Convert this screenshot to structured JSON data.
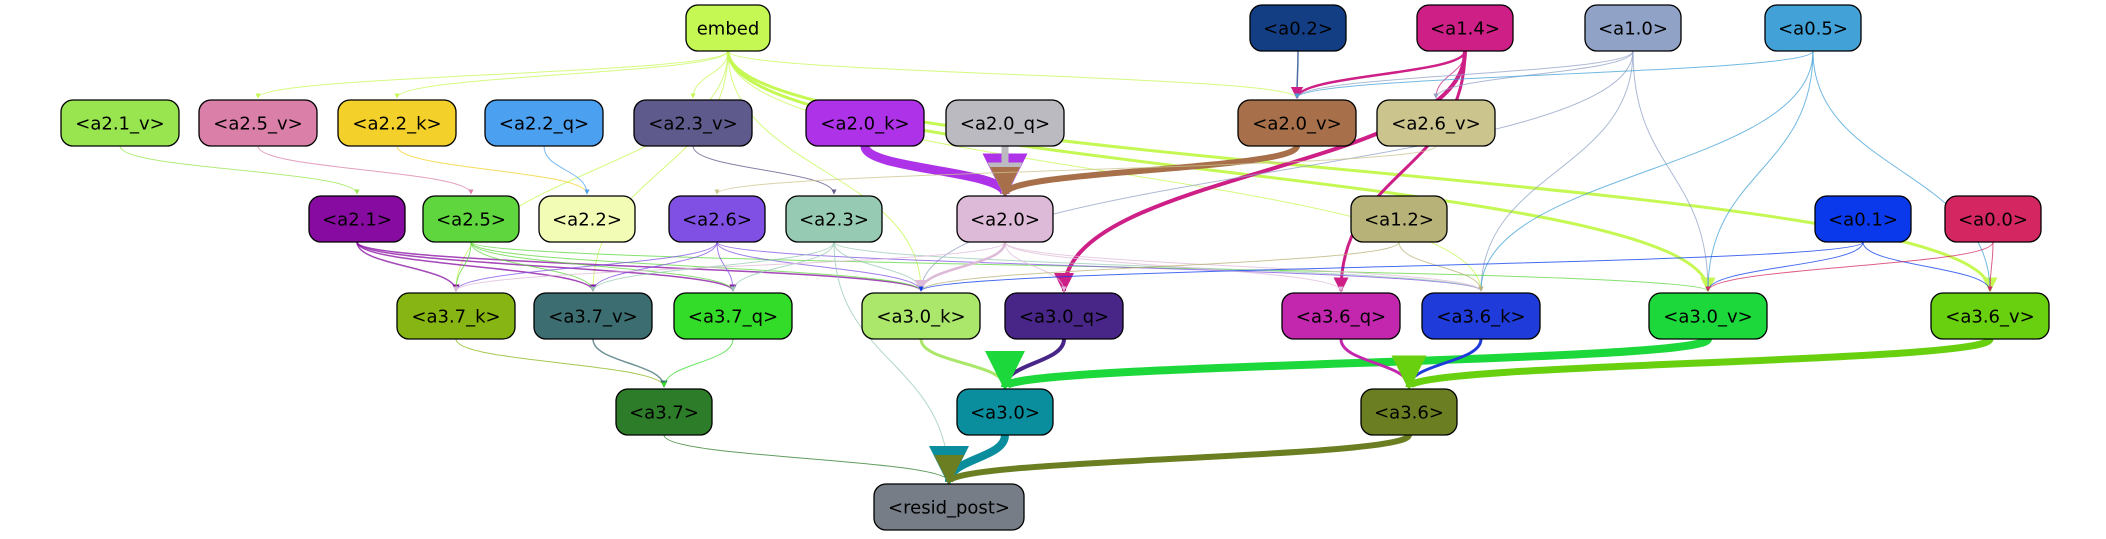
{
  "nodes": [
    {
      "id": "embed",
      "label": "embed",
      "fill": "#c5f853",
      "text": "#000000"
    },
    {
      "id": "a0_2",
      "label": "<a0.2>",
      "fill": "#133e84",
      "text": "#000000"
    },
    {
      "id": "a1_4",
      "label": "<a1.4>",
      "fill": "#cd1f86",
      "text": "#000000"
    },
    {
      "id": "a1_0",
      "label": "<a1.0>",
      "fill": "#90a2c6",
      "text": "#000000"
    },
    {
      "id": "a0_5",
      "label": "<a0.5>",
      "fill": "#42a1d7",
      "text": "#000000"
    },
    {
      "id": "a2_1_v",
      "label": "<a2.1_v>",
      "fill": "#98e54f",
      "text": "#000000"
    },
    {
      "id": "a2_5_v",
      "label": "<a2.5_v>",
      "fill": "#da7fa8",
      "text": "#000000"
    },
    {
      "id": "a2_2_k",
      "label": "<a2.2_k>",
      "fill": "#f4d12a",
      "text": "#000000"
    },
    {
      "id": "a2_2_q",
      "label": "<a2.2_q>",
      "fill": "#4ba0f0",
      "text": "#000000"
    },
    {
      "id": "a2_3_v",
      "label": "<a2.3_v>",
      "fill": "#5f5a8c",
      "text": "#000000"
    },
    {
      "id": "a2_0_k",
      "label": "<a2.0_k>",
      "fill": "#ae32e8",
      "text": "#000000"
    },
    {
      "id": "a2_0_q",
      "label": "<a2.0_q>",
      "fill": "#babac0",
      "text": "#000000"
    },
    {
      "id": "a2_0_v",
      "label": "<a2.0_v>",
      "fill": "#a7704a",
      "text": "#000000"
    },
    {
      "id": "a2_6_v",
      "label": "<a2.6_v>",
      "fill": "#cbc48d",
      "text": "#000000"
    },
    {
      "id": "a2_1",
      "label": "<a2.1>",
      "fill": "#870ba1",
      "text": "#000000"
    },
    {
      "id": "a2_5",
      "label": "<a2.5>",
      "fill": "#5fd53e",
      "text": "#000000"
    },
    {
      "id": "a2_2",
      "label": "<a2.2>",
      "fill": "#f3fcb5",
      "text": "#000000"
    },
    {
      "id": "a2_6",
      "label": "<a2.6>",
      "fill": "#8050e5",
      "text": "#000000"
    },
    {
      "id": "a2_3",
      "label": "<a2.3>",
      "fill": "#97cab3",
      "text": "#000000"
    },
    {
      "id": "a2_0",
      "label": "<a2.0>",
      "fill": "#ddbad7",
      "text": "#000000"
    },
    {
      "id": "a1_2",
      "label": "<a1.2>",
      "fill": "#b7b277",
      "text": "#000000"
    },
    {
      "id": "a0_1",
      "label": "<a0.1>",
      "fill": "#0a39ec",
      "text": "#000000"
    },
    {
      "id": "a0_0",
      "label": "<a0.0>",
      "fill": "#d42762",
      "text": "#000000"
    },
    {
      "id": "a3_7_k",
      "label": "<a3.7_k>",
      "fill": "#87b513",
      "text": "#000000"
    },
    {
      "id": "a3_7_v",
      "label": "<a3.7_v>",
      "fill": "#3c6d70",
      "text": "#000000"
    },
    {
      "id": "a3_7_q",
      "label": "<a3.7_q>",
      "fill": "#33dc29",
      "text": "#000000"
    },
    {
      "id": "a3_0_k",
      "label": "<a3.0_k>",
      "fill": "#abe76a",
      "text": "#000000"
    },
    {
      "id": "a3_0_q",
      "label": "<a3.0_q>",
      "fill": "#482687",
      "text": "#000000"
    },
    {
      "id": "a3_6_q",
      "label": "<a3.6_q>",
      "fill": "#c327ae",
      "text": "#000000"
    },
    {
      "id": "a3_6_k",
      "label": "<a3.6_k>",
      "fill": "#1f3bd9",
      "text": "#000000"
    },
    {
      "id": "a3_0_v",
      "label": "<a3.0_v>",
      "fill": "#1cd83b",
      "text": "#000000"
    },
    {
      "id": "a3_6_v",
      "label": "<a3.6_v>",
      "fill": "#68d00e",
      "text": "#000000"
    },
    {
      "id": "a3_7",
      "label": "<a3.7>",
      "fill": "#2c7c2a",
      "text": "#000000"
    },
    {
      "id": "a3_0",
      "label": "<a3.0>",
      "fill": "#0a8e9d",
      "text": "#000000"
    },
    {
      "id": "a3_6",
      "label": "<a3.6>",
      "fill": "#6b7f22",
      "text": "#000000"
    },
    {
      "id": "resid_post",
      "label": "<resid_post>",
      "fill": "#767d86",
      "text": "#000000"
    }
  ],
  "edges": [
    {
      "from": "embed",
      "to": "a2_5_v",
      "color": "#c5f853",
      "weight": 1
    },
    {
      "from": "embed",
      "to": "a2_2_k",
      "color": "#c5f853",
      "weight": 1
    },
    {
      "from": "embed",
      "to": "a2_3_v",
      "color": "#c5f853",
      "weight": 1
    },
    {
      "from": "embed",
      "to": "a2_0_v",
      "color": "#c5f853",
      "weight": 1
    },
    {
      "from": "embed",
      "to": "a3_7_k",
      "color": "#c5f853",
      "weight": 1
    },
    {
      "from": "embed",
      "to": "a3_7_v",
      "color": "#c5f853",
      "weight": 1
    },
    {
      "from": "embed",
      "to": "a3_0_k",
      "color": "#c5f853",
      "weight": 1
    },
    {
      "from": "embed",
      "to": "a3_6_k",
      "color": "#c5f853",
      "weight": 1
    },
    {
      "from": "embed",
      "to": "a3_0_v",
      "color": "#c5f853",
      "weight": 3
    },
    {
      "from": "embed",
      "to": "a3_6_v",
      "color": "#c5f853",
      "weight": 3
    },
    {
      "from": "a0_2",
      "to": "a2_0_v",
      "color": "#133e84",
      "weight": 1.5
    },
    {
      "from": "a1_4",
      "to": "a2_0_v",
      "color": "#cd1f86",
      "weight": 2.5
    },
    {
      "from": "a1_4",
      "to": "a2_6_v",
      "color": "#cd1f86",
      "weight": 1
    },
    {
      "from": "a1_4",
      "to": "a3_0_q",
      "color": "#cd1f86",
      "weight": 4
    },
    {
      "from": "a1_4",
      "to": "a3_6_q",
      "color": "#cd1f86",
      "weight": 3
    },
    {
      "from": "a1_0",
      "to": "a2_0_v",
      "color": "#90a2c6",
      "weight": 1
    },
    {
      "from": "a1_0",
      "to": "a2_6_v",
      "color": "#90a2c6",
      "weight": 1
    },
    {
      "from": "a1_0",
      "to": "a3_0_k",
      "color": "#90a2c6",
      "weight": 1
    },
    {
      "from": "a1_0",
      "to": "a3_6_k",
      "color": "#90a2c6",
      "weight": 1
    },
    {
      "from": "a1_0",
      "to": "a3_0_v",
      "color": "#90a2c6",
      "weight": 1
    },
    {
      "from": "a0_5",
      "to": "a2_0_v",
      "color": "#42a1d7",
      "weight": 1
    },
    {
      "from": "a0_5",
      "to": "a3_6_k",
      "color": "#42a1d7",
      "weight": 1
    },
    {
      "from": "a0_5",
      "to": "a3_0_v",
      "color": "#42a1d7",
      "weight": 1
    },
    {
      "from": "a0_5",
      "to": "a3_6_v",
      "color": "#42a1d7",
      "weight": 1
    },
    {
      "from": "a2_1_v",
      "to": "a2_1",
      "color": "#98e54f",
      "weight": 1
    },
    {
      "from": "a2_5_v",
      "to": "a2_5",
      "color": "#da7fa8",
      "weight": 1
    },
    {
      "from": "a2_2_k",
      "to": "a2_2",
      "color": "#f4d12a",
      "weight": 1
    },
    {
      "from": "a2_2_q",
      "to": "a2_2",
      "color": "#4ba0f0",
      "weight": 1
    },
    {
      "from": "a2_3_v",
      "to": "a2_3",
      "color": "#5f5a8c",
      "weight": 1
    },
    {
      "from": "a2_0_k",
      "to": "a2_0",
      "color": "#ae32e8",
      "weight": 9
    },
    {
      "from": "a2_0_q",
      "to": "a2_0",
      "color": "#babac0",
      "weight": 7
    },
    {
      "from": "a2_0_v",
      "to": "a2_0",
      "color": "#a7704a",
      "weight": 6
    },
    {
      "from": "a2_6_v",
      "to": "a2_6",
      "color": "#cbc48d",
      "weight": 1
    },
    {
      "from": "a2_1",
      "to": "a3_7_k",
      "color": "#870ba1",
      "weight": 1.5
    },
    {
      "from": "a2_1",
      "to": "a3_7_v",
      "color": "#870ba1",
      "weight": 1.5
    },
    {
      "from": "a2_1",
      "to": "a3_7_q",
      "color": "#870ba1",
      "weight": 1.5
    },
    {
      "from": "a2_1",
      "to": "a3_0_k",
      "color": "#870ba1",
      "weight": 1.5
    },
    {
      "from": "a2_5",
      "to": "a3_7_k",
      "color": "#5fd53e",
      "weight": 1
    },
    {
      "from": "a2_5",
      "to": "a3_7_v",
      "color": "#5fd53e",
      "weight": 1
    },
    {
      "from": "a2_5",
      "to": "a3_7_q",
      "color": "#5fd53e",
      "weight": 1
    },
    {
      "from": "a2_5",
      "to": "a3_0_k",
      "color": "#5fd53e",
      "weight": 1
    },
    {
      "from": "a2_5",
      "to": "a3_0_v",
      "color": "#5fd53e",
      "weight": 1
    },
    {
      "from": "a2_6",
      "to": "a3_7_k",
      "color": "#8050e5",
      "weight": 1
    },
    {
      "from": "a2_6",
      "to": "a3_7_v",
      "color": "#8050e5",
      "weight": 1
    },
    {
      "from": "a2_6",
      "to": "a3_7_q",
      "color": "#8050e5",
      "weight": 1
    },
    {
      "from": "a2_6",
      "to": "a3_0_k",
      "color": "#8050e5",
      "weight": 1
    },
    {
      "from": "a2_6",
      "to": "a3_6_k",
      "color": "#8050e5",
      "weight": 1
    },
    {
      "from": "a2_3",
      "to": "a3_7_v",
      "color": "#97cab3",
      "weight": 1
    },
    {
      "from": "a2_3",
      "to": "a3_7_q",
      "color": "#97cab3",
      "weight": 1
    },
    {
      "from": "a2_3",
      "to": "a3_0_k",
      "color": "#97cab3",
      "weight": 1
    },
    {
      "from": "a2_3",
      "to": "a3_6_k",
      "color": "#97cab3",
      "weight": 1
    },
    {
      "from": "a2_3",
      "to": "resid_post",
      "color": "#97cab3",
      "weight": 1
    },
    {
      "from": "a2_0",
      "to": "a3_7_k",
      "color": "#ddbad7",
      "weight": 1
    },
    {
      "from": "a2_0",
      "to": "a3_0_k",
      "color": "#ddbad7",
      "weight": 2.5
    },
    {
      "from": "a2_0",
      "to": "a3_0_q",
      "color": "#ddbad7",
      "weight": 1
    },
    {
      "from": "a2_0",
      "to": "a3_6_q",
      "color": "#ddbad7",
      "weight": 1
    },
    {
      "from": "a2_0",
      "to": "a3_6_k",
      "color": "#ddbad7",
      "weight": 1
    },
    {
      "from": "a1_2",
      "to": "a3_0_k",
      "color": "#b7b277",
      "weight": 1
    },
    {
      "from": "a1_2",
      "to": "a3_6_k",
      "color": "#b7b277",
      "weight": 1
    },
    {
      "from": "a0_1",
      "to": "a3_0_k",
      "color": "#0a39ec",
      "weight": 1
    },
    {
      "from": "a0_1",
      "to": "a3_0_v",
      "color": "#0a39ec",
      "weight": 1
    },
    {
      "from": "a0_1",
      "to": "a3_6_v",
      "color": "#0a39ec",
      "weight": 1
    },
    {
      "from": "a0_0",
      "to": "a3_0_v",
      "color": "#d42762",
      "weight": 1
    },
    {
      "from": "a0_0",
      "to": "a3_6_v",
      "color": "#d42762",
      "weight": 1
    },
    {
      "from": "a3_7_k",
      "to": "a3_7",
      "color": "#87b513",
      "weight": 1
    },
    {
      "from": "a3_7_v",
      "to": "a3_7",
      "color": "#3c6d70",
      "weight": 1.5
    },
    {
      "from": "a3_7_q",
      "to": "a3_7",
      "color": "#33dc29",
      "weight": 1
    },
    {
      "from": "a3_0_k",
      "to": "a3_0",
      "color": "#abe76a",
      "weight": 3
    },
    {
      "from": "a3_0_q",
      "to": "a3_0",
      "color": "#482687",
      "weight": 4
    },
    {
      "from": "a3_0_v",
      "to": "a3_0",
      "color": "#1cd83b",
      "weight": 8
    },
    {
      "from": "a3_6_q",
      "to": "a3_6",
      "color": "#c327ae",
      "weight": 3
    },
    {
      "from": "a3_6_k",
      "to": "a3_6",
      "color": "#1f3bd9",
      "weight": 3
    },
    {
      "from": "a3_6_v",
      "to": "a3_6",
      "color": "#68d00e",
      "weight": 7
    },
    {
      "from": "a3_7",
      "to": "resid_post",
      "color": "#2c7c2a",
      "weight": 1
    },
    {
      "from": "a3_0",
      "to": "resid_post",
      "color": "#0a8e9d",
      "weight": 8
    },
    {
      "from": "a3_6",
      "to": "resid_post",
      "color": "#6b7f22",
      "weight": 6
    }
  ]
}
